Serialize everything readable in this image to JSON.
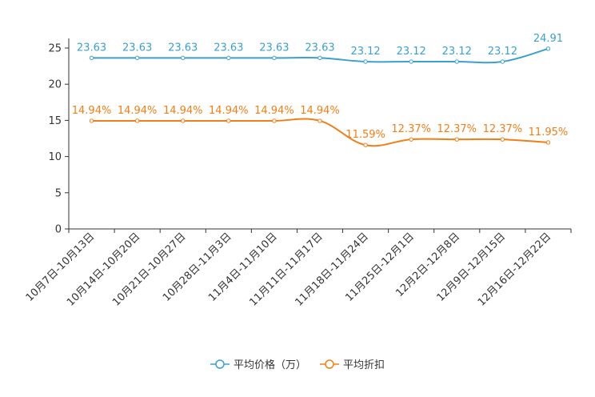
{
  "chart_data": {
    "type": "line",
    "categories": [
      "10月7日-10月13日",
      "10月14日-10月20日",
      "10月21日-10月27日",
      "10月28日-11月3日",
      "11月4日-11月10日",
      "11月11日-11月17日",
      "11月18日-11月24日",
      "11月25日-12月1日",
      "12月2日-12月8日",
      "12月9日-12月15日",
      "12月16日-12月22日"
    ],
    "series": [
      {
        "name": "平均价格（万）",
        "color": "#3aa0d0",
        "values": [
          23.63,
          23.63,
          23.63,
          23.63,
          23.63,
          23.63,
          23.12,
          23.12,
          23.12,
          23.12,
          24.91
        ],
        "labels": [
          "23.63",
          "23.63",
          "23.63",
          "23.63",
          "23.63",
          "23.63",
          "23.12",
          "23.12",
          "23.12",
          "23.12",
          "24.91"
        ]
      },
      {
        "name": "平均折扣",
        "color": "#f27e16",
        "values": [
          14.94,
          14.94,
          14.94,
          14.94,
          14.94,
          14.94,
          11.59,
          12.37,
          12.37,
          12.37,
          11.95
        ],
        "labels": [
          "14.94%",
          "14.94%",
          "14.94%",
          "14.94%",
          "14.94%",
          "14.94%",
          "11.59%",
          "12.37%",
          "12.37%",
          "12.37%",
          "11.95%"
        ]
      }
    ],
    "yticks": [
      "0",
      "5",
      "10",
      "15",
      "20",
      "25"
    ],
    "ylim": [
      0,
      25
    ],
    "legend_position": "bottom-center",
    "grid": false
  }
}
